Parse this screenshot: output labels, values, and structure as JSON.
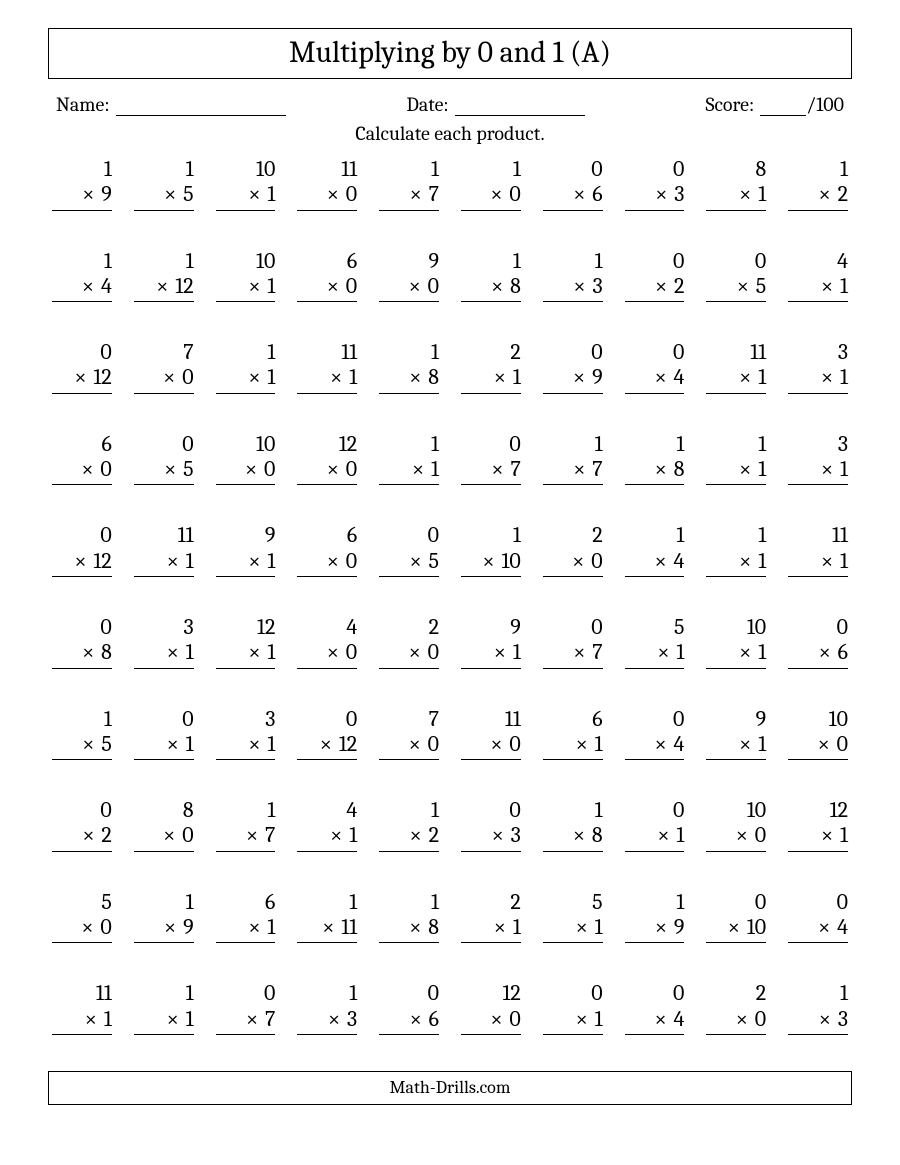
{
  "title": "Multiplying by 0 and 1 (A)",
  "labels": {
    "name": "Name:",
    "date": "Date:",
    "score": "Score:",
    "score_total": "/100"
  },
  "instruction": "Calculate each product.",
  "footer": "Math-Drills.com",
  "style": {
    "background_color": "#ffffff",
    "text_color": "#000000",
    "border_color": "#000000",
    "title_fontsize": 30,
    "body_fontsize": 20,
    "problem_fontsize": 22,
    "columns": 10,
    "rows": 10,
    "font_family": "Cambria, Georgia, serif"
  },
  "problems": [
    {
      "a": 1,
      "b": 9
    },
    {
      "a": 1,
      "b": 5
    },
    {
      "a": 10,
      "b": 1
    },
    {
      "a": 11,
      "b": 0
    },
    {
      "a": 1,
      "b": 7
    },
    {
      "a": 1,
      "b": 0
    },
    {
      "a": 0,
      "b": 6
    },
    {
      "a": 0,
      "b": 3
    },
    {
      "a": 8,
      "b": 1
    },
    {
      "a": 1,
      "b": 2
    },
    {
      "a": 1,
      "b": 4
    },
    {
      "a": 1,
      "b": 12
    },
    {
      "a": 10,
      "b": 1
    },
    {
      "a": 6,
      "b": 0
    },
    {
      "a": 9,
      "b": 0
    },
    {
      "a": 1,
      "b": 8
    },
    {
      "a": 1,
      "b": 3
    },
    {
      "a": 0,
      "b": 2
    },
    {
      "a": 0,
      "b": 5
    },
    {
      "a": 4,
      "b": 1
    },
    {
      "a": 0,
      "b": 12
    },
    {
      "a": 7,
      "b": 0
    },
    {
      "a": 1,
      "b": 1
    },
    {
      "a": 11,
      "b": 1
    },
    {
      "a": 1,
      "b": 8
    },
    {
      "a": 2,
      "b": 1
    },
    {
      "a": 0,
      "b": 9
    },
    {
      "a": 0,
      "b": 4
    },
    {
      "a": 11,
      "b": 1
    },
    {
      "a": 3,
      "b": 1
    },
    {
      "a": 6,
      "b": 0
    },
    {
      "a": 0,
      "b": 5
    },
    {
      "a": 10,
      "b": 0
    },
    {
      "a": 12,
      "b": 0
    },
    {
      "a": 1,
      "b": 1
    },
    {
      "a": 0,
      "b": 7
    },
    {
      "a": 1,
      "b": 7
    },
    {
      "a": 1,
      "b": 8
    },
    {
      "a": 1,
      "b": 1
    },
    {
      "a": 3,
      "b": 1
    },
    {
      "a": 0,
      "b": 12
    },
    {
      "a": 11,
      "b": 1
    },
    {
      "a": 9,
      "b": 1
    },
    {
      "a": 6,
      "b": 0
    },
    {
      "a": 0,
      "b": 5
    },
    {
      "a": 1,
      "b": 10
    },
    {
      "a": 2,
      "b": 0
    },
    {
      "a": 1,
      "b": 4
    },
    {
      "a": 1,
      "b": 1
    },
    {
      "a": 11,
      "b": 1
    },
    {
      "a": 0,
      "b": 8
    },
    {
      "a": 3,
      "b": 1
    },
    {
      "a": 12,
      "b": 1
    },
    {
      "a": 4,
      "b": 0
    },
    {
      "a": 2,
      "b": 0
    },
    {
      "a": 9,
      "b": 1
    },
    {
      "a": 0,
      "b": 7
    },
    {
      "a": 5,
      "b": 1
    },
    {
      "a": 10,
      "b": 1
    },
    {
      "a": 0,
      "b": 6
    },
    {
      "a": 1,
      "b": 5
    },
    {
      "a": 0,
      "b": 1
    },
    {
      "a": 3,
      "b": 1
    },
    {
      "a": 0,
      "b": 12
    },
    {
      "a": 7,
      "b": 0
    },
    {
      "a": 11,
      "b": 0
    },
    {
      "a": 6,
      "b": 1
    },
    {
      "a": 0,
      "b": 4
    },
    {
      "a": 9,
      "b": 1
    },
    {
      "a": 10,
      "b": 0
    },
    {
      "a": 0,
      "b": 2
    },
    {
      "a": 8,
      "b": 0
    },
    {
      "a": 1,
      "b": 7
    },
    {
      "a": 4,
      "b": 1
    },
    {
      "a": 1,
      "b": 2
    },
    {
      "a": 0,
      "b": 3
    },
    {
      "a": 1,
      "b": 8
    },
    {
      "a": 0,
      "b": 1
    },
    {
      "a": 10,
      "b": 0
    },
    {
      "a": 12,
      "b": 1
    },
    {
      "a": 5,
      "b": 0
    },
    {
      "a": 1,
      "b": 9
    },
    {
      "a": 6,
      "b": 1
    },
    {
      "a": 1,
      "b": 11
    },
    {
      "a": 1,
      "b": 8
    },
    {
      "a": 2,
      "b": 1
    },
    {
      "a": 5,
      "b": 1
    },
    {
      "a": 1,
      "b": 9
    },
    {
      "a": 0,
      "b": 10
    },
    {
      "a": 0,
      "b": 4
    },
    {
      "a": 11,
      "b": 1
    },
    {
      "a": 1,
      "b": 1
    },
    {
      "a": 0,
      "b": 7
    },
    {
      "a": 1,
      "b": 3
    },
    {
      "a": 0,
      "b": 6
    },
    {
      "a": 12,
      "b": 0
    },
    {
      "a": 0,
      "b": 1
    },
    {
      "a": 0,
      "b": 4
    },
    {
      "a": 2,
      "b": 0
    },
    {
      "a": 1,
      "b": 3
    }
  ]
}
